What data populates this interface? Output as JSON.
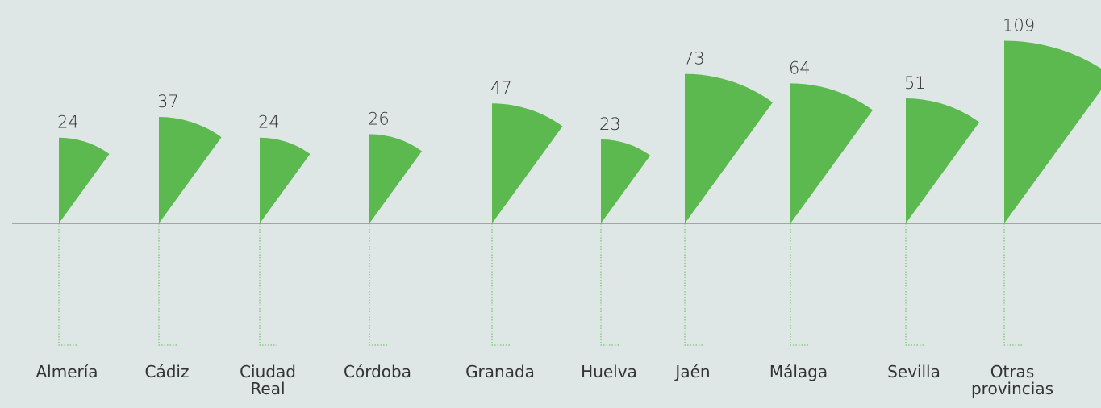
{
  "chart_data": {
    "type": "fan",
    "color": "#5cb94f",
    "categories": [
      "Almería",
      "Cádiz",
      "Ciudad Real",
      "Córdoba",
      "Granada",
      "Huelva",
      "Jaén",
      "Málaga",
      "Sevilla",
      "Otras provincias"
    ],
    "values": [
      24,
      37,
      24,
      26,
      47,
      23,
      73,
      64,
      51,
      109
    ]
  }
}
